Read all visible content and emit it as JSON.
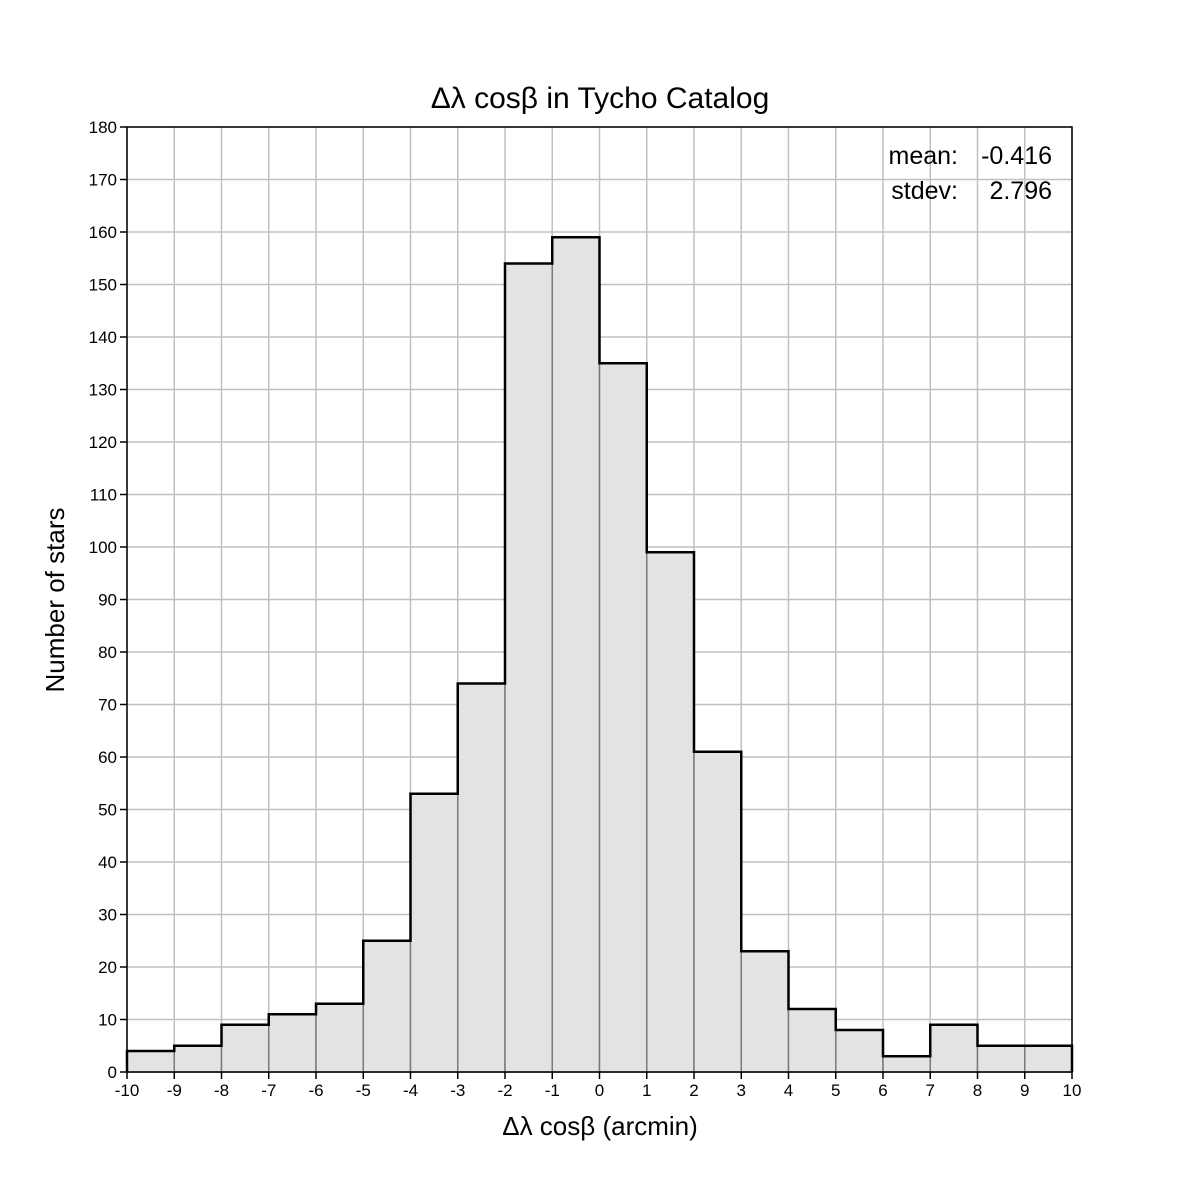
{
  "chart_data": {
    "type": "bar",
    "title": "Δλ cosβ in Tycho Catalog",
    "xlabel": "Δλ cosβ (arcmin)",
    "ylabel": "Number of stars",
    "xlim": [
      -10,
      10
    ],
    "ylim": [
      0,
      180
    ],
    "grid": true,
    "bin_edges": [
      -10,
      -9,
      -8,
      -7,
      -6,
      -5,
      -4,
      -3,
      -2,
      -1,
      0,
      1,
      2,
      3,
      4,
      5,
      6,
      7,
      8,
      9,
      10
    ],
    "values": [
      4,
      5,
      9,
      11,
      13,
      25,
      53,
      74,
      154,
      159,
      135,
      99,
      61,
      23,
      12,
      8,
      3,
      9,
      5,
      5
    ],
    "x_ticks": [
      "-10",
      "-9",
      "-8",
      "-7",
      "-6",
      "-5",
      "-4",
      "-3",
      "-2",
      "-1",
      "0",
      "1",
      "2",
      "3",
      "4",
      "5",
      "6",
      "7",
      "8",
      "9",
      "10"
    ],
    "y_ticks": [
      "0",
      "10",
      "20",
      "30",
      "40",
      "50",
      "60",
      "70",
      "80",
      "90",
      "100",
      "110",
      "120",
      "130",
      "140",
      "150",
      "160",
      "170",
      "180"
    ],
    "annotations": {
      "mean_label": "mean:",
      "mean_value": "-0.416",
      "stdev_label": "stdev:",
      "stdev_value": "2.796"
    }
  }
}
